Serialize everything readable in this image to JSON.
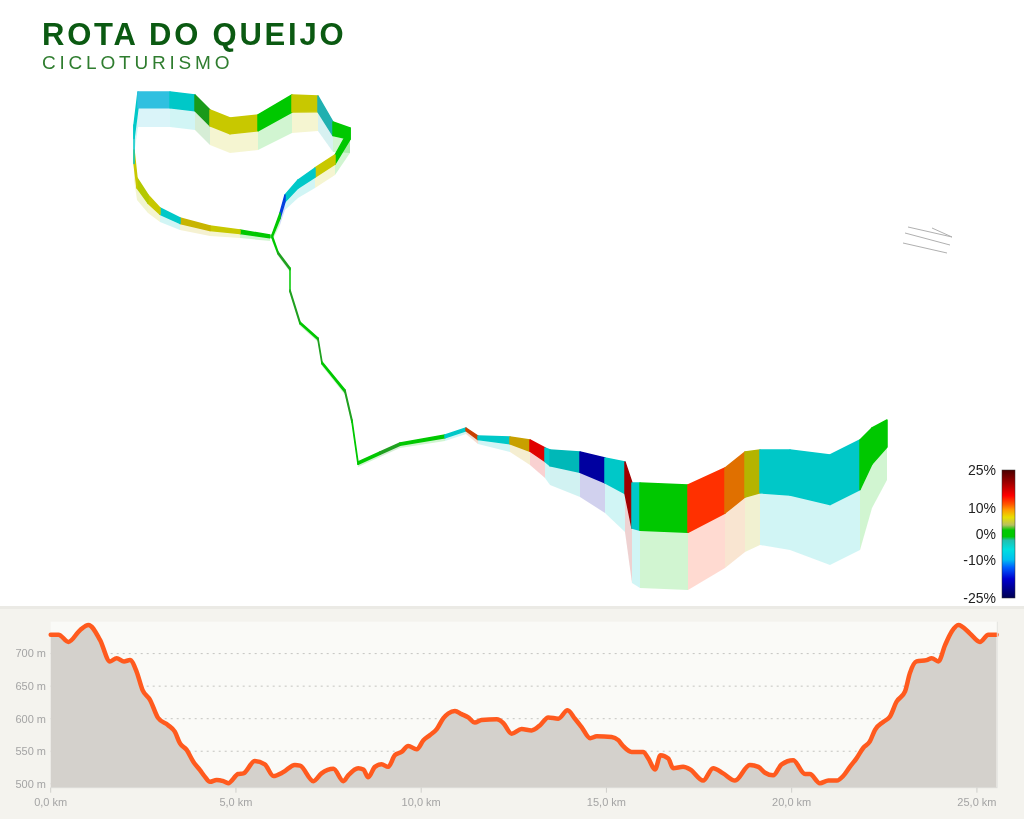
{
  "chart_data": [
    {
      "type": "other",
      "title": "ROTA DO QUEIJO",
      "subtitle": "CICLOTURISMO",
      "annotations": [
        "25%",
        "10%",
        "0%",
        "-10%",
        "-25%"
      ]
    },
    {
      "type": "area",
      "x": [
        0,
        0.21,
        0.48,
        0.79,
        1.02,
        1.33,
        1.6,
        1.78,
        1.98,
        2.14,
        2.32,
        2.48,
        2.68,
        2.9,
        3.17,
        3.35,
        3.49,
        3.67,
        3.85,
        4.03,
        4.16,
        4.3,
        4.48,
        4.66,
        4.79,
        5.06,
        5.2,
        5.51,
        5.78,
        6.01,
        6.28,
        6.59,
        6.73,
        7.09,
        7.31,
        7.63,
        7.9,
        8.03,
        8.3,
        8.44,
        8.57,
        8.75,
        8.93,
        9.11,
        9.29,
        9.47,
        9.65,
        9.88,
        10.06,
        10.24,
        10.42,
        10.6,
        10.73,
        10.91,
        11.09,
        11.27,
        11.45,
        11.63,
        12.04,
        12.22,
        12.44,
        12.71,
        12.98,
        13.21,
        13.43,
        13.7,
        13.95,
        14.15,
        14.33,
        14.56,
        14.74,
        15.14,
        15.32,
        15.45,
        15.68,
        15.99,
        16.13,
        16.31,
        16.46,
        16.67,
        16.8,
        17.07,
        17.26,
        17.61,
        17.88,
        18.15,
        18.47,
        18.87,
        19.1,
        19.28,
        19.5,
        19.73,
        20.04,
        20.36,
        20.49,
        20.76,
        20.99,
        21.22,
        21.39,
        21.57,
        21.75,
        21.93,
        22.11,
        22.25,
        22.47,
        22.65,
        22.83,
        23.06,
        23.19,
        23.37,
        23.64,
        23.78,
        23.96,
        24.14,
        24.32,
        24.5,
        24.81,
        25.08,
        25.31,
        25.53
      ],
      "series": [
        {
          "type": "area",
          "color": "#ff5a1e",
          "values": [
            729,
            729,
            718,
            736,
            744,
            721,
            688,
            693,
            688,
            690,
            672,
            644,
            629,
            601,
            590,
            580,
            562,
            552,
            534,
            521,
            511,
            503,
            506,
            504,
            501,
            515,
            516,
            535,
            530,
            512,
            518,
            529,
            528,
            504,
            516,
            523,
            504,
            513,
            524,
            522,
            510,
            526,
            530,
            526,
            544,
            549,
            558,
            553,
            567,
            575,
            584,
            601,
            608,
            612,
            607,
            602,
            594,
            598,
            599,
            593,
            577,
            584,
            582,
            590,
            602,
            600,
            613,
            600,
            587,
            570,
            573,
            572,
            567,
            558,
            549,
            549,
            539,
            522,
            544,
            539,
            524,
            526,
            522,
            505,
            524,
            516,
            505,
            529,
            526,
            517,
            513,
            530,
            536,
            515,
            515,
            501,
            505,
            505,
            512,
            526,
            539,
            555,
            565,
            583,
            595,
            603,
            626,
            642,
            670,
            688,
            690,
            693,
            688,
            713,
            734,
            744,
            731,
            718,
            729,
            729
          ]
        }
      ],
      "xlim": [
        0,
        25.55
      ],
      "xticks": [
        {
          "value": 0,
          "label": "0,0 km"
        },
        {
          "value": 5,
          "label": "5,0 km"
        },
        {
          "value": 10,
          "label": "10,0 km"
        },
        {
          "value": 15,
          "label": "15,0 km"
        },
        {
          "value": 20,
          "label": "20,0 km"
        },
        {
          "value": 25,
          "label": "25,0 km"
        }
      ],
      "ylim": [
        494,
        749
      ],
      "yticks": [
        {
          "value": 500,
          "label": "500 m"
        },
        {
          "value": 550,
          "label": "550 m"
        },
        {
          "value": 600,
          "label": "600 m"
        },
        {
          "value": 650,
          "label": "650 m"
        },
        {
          "value": 700,
          "label": "700 m"
        }
      ],
      "grid": "y"
    }
  ]
}
